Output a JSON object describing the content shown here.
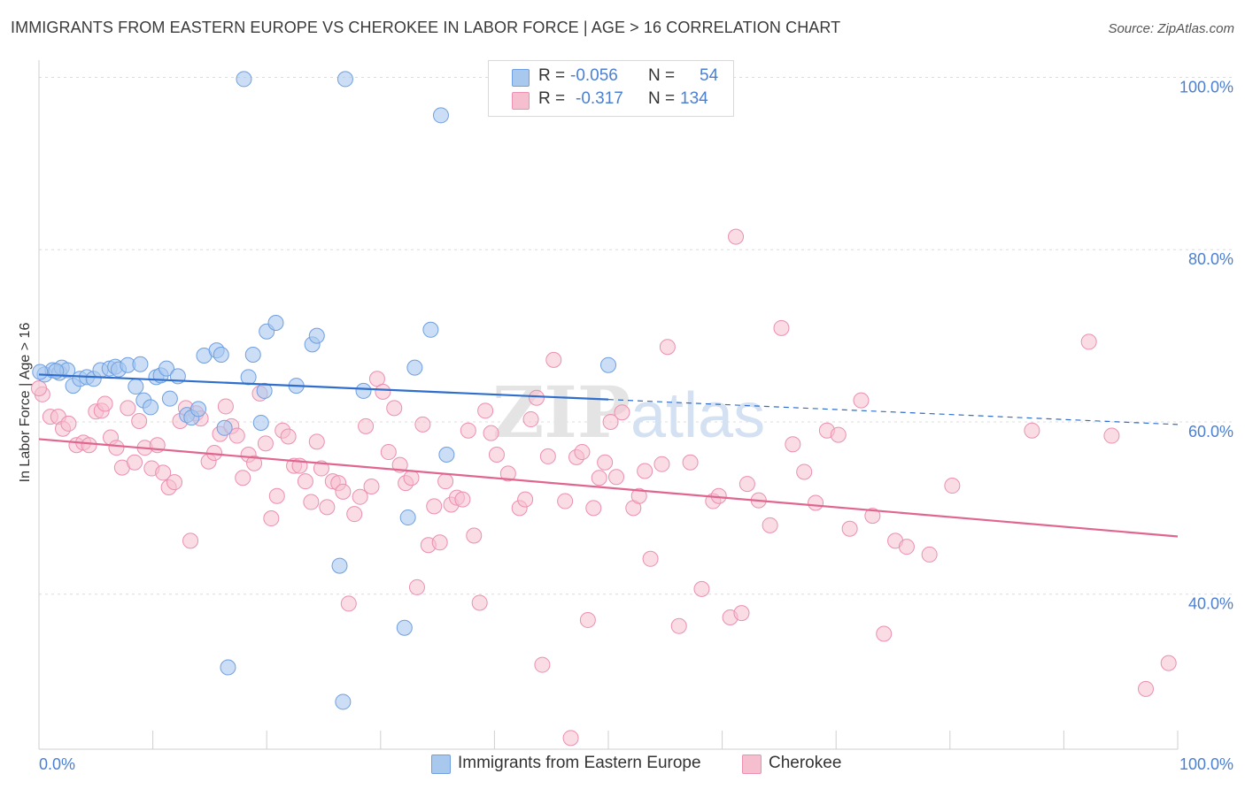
{
  "title": "IMMIGRANTS FROM EASTERN EUROPE VS CHEROKEE IN LABOR FORCE | AGE > 16 CORRELATION CHART",
  "source": "Source: ZipAtlas.com",
  "watermark": "ZIPatlas",
  "colors": {
    "blue_fill": "#a9c8ee",
    "blue_stroke": "#6f9fe0",
    "blue_line": "#2f6ecc",
    "pink_fill": "#f6bfd0",
    "pink_stroke": "#ec8fb0",
    "pink_line": "#e06690",
    "axis_text": "#4a7fd4",
    "grid": "#dcdcdc"
  },
  "legend": {
    "rows": [
      {
        "r_label": "R =",
        "r_value": "-0.056",
        "n_label": "N =",
        "n_value": "54",
        "color": "#a9c8ee"
      },
      {
        "r_label": "R =",
        "r_value": "-0.317",
        "n_label": "N =",
        "n_value": "134",
        "color": "#f6bfd0"
      }
    ]
  },
  "bottom_legend": [
    "Immigrants from Eastern Europe",
    "Cherokee"
  ],
  "chart_data": {
    "type": "scatter",
    "title": "IMMIGRANTS FROM EASTERN EUROPE VS CHEROKEE IN LABOR FORCE | AGE > 16 CORRELATION CHART",
    "xlabel": "",
    "ylabel": "In Labor Force | Age > 16",
    "xlim": [
      0,
      100
    ],
    "ylim": [
      22,
      102
    ],
    "x_tick_labels": [
      "0.0%",
      "100.0%"
    ],
    "y_tick_labels": [
      "40.0%",
      "60.0%",
      "80.0%",
      "100.0%"
    ],
    "y_ticks": [
      40,
      60,
      80,
      100
    ],
    "grid": true,
    "legend_position": "top-center",
    "series": [
      {
        "name": "Immigrants from Eastern Europe",
        "color": "#a9c8ee",
        "trend": {
          "x": [
            0,
            50
          ],
          "y": [
            65.5,
            62.6
          ],
          "dashed_extension_to": [
            100,
            59.7
          ]
        },
        "points": [
          [
            0.5,
            65.5
          ],
          [
            1.2,
            66.0
          ],
          [
            1.8,
            65.7
          ],
          [
            2.0,
            66.3
          ],
          [
            2.5,
            66.0
          ],
          [
            3.0,
            64.2
          ],
          [
            3.6,
            65.0
          ],
          [
            4.2,
            65.2
          ],
          [
            4.8,
            65.0
          ],
          [
            5.4,
            66.0
          ],
          [
            6.2,
            66.2
          ],
          [
            6.7,
            66.4
          ],
          [
            7.0,
            66.1
          ],
          [
            7.8,
            66.6
          ],
          [
            8.5,
            64.1
          ],
          [
            8.9,
            66.7
          ],
          [
            9.2,
            62.5
          ],
          [
            9.8,
            61.7
          ],
          [
            10.3,
            65.2
          ],
          [
            10.7,
            65.4
          ],
          [
            11.2,
            66.2
          ],
          [
            11.5,
            62.7
          ],
          [
            12.2,
            65.3
          ],
          [
            13.0,
            60.8
          ],
          [
            13.4,
            60.5
          ],
          [
            14.0,
            61.5
          ],
          [
            14.5,
            67.7
          ],
          [
            15.6,
            68.3
          ],
          [
            16.0,
            67.8
          ],
          [
            16.3,
            59.3
          ],
          [
            16.6,
            31.5
          ],
          [
            18.0,
            99.8
          ],
          [
            18.4,
            65.2
          ],
          [
            18.8,
            67.8
          ],
          [
            19.5,
            59.9
          ],
          [
            19.8,
            63.6
          ],
          [
            20.0,
            70.5
          ],
          [
            20.8,
            71.5
          ],
          [
            22.6,
            64.2
          ],
          [
            24.0,
            69.0
          ],
          [
            24.4,
            70.0
          ],
          [
            26.4,
            43.3
          ],
          [
            26.7,
            27.5
          ],
          [
            26.9,
            99.8
          ],
          [
            28.5,
            63.6
          ],
          [
            32.1,
            36.1
          ],
          [
            32.4,
            48.9
          ],
          [
            33.0,
            66.3
          ],
          [
            34.4,
            70.7
          ],
          [
            35.3,
            95.6
          ],
          [
            35.8,
            56.2
          ],
          [
            50.0,
            66.6
          ],
          [
            0.1,
            65.8
          ],
          [
            1.5,
            65.9
          ]
        ]
      },
      {
        "name": "Cherokee",
        "color": "#f6bfd0",
        "trend": {
          "x": [
            0,
            100
          ],
          "y": [
            58.0,
            46.7
          ]
        },
        "points": [
          [
            0.3,
            63.2
          ],
          [
            1.0,
            60.6
          ],
          [
            1.7,
            60.6
          ],
          [
            2.1,
            59.2
          ],
          [
            2.6,
            59.8
          ],
          [
            3.3,
            57.3
          ],
          [
            3.9,
            57.6
          ],
          [
            4.4,
            57.3
          ],
          [
            5.0,
            61.2
          ],
          [
            5.5,
            61.3
          ],
          [
            5.8,
            62.1
          ],
          [
            6.3,
            58.2
          ],
          [
            6.8,
            57.0
          ],
          [
            7.3,
            54.7
          ],
          [
            7.8,
            61.6
          ],
          [
            8.4,
            55.3
          ],
          [
            8.8,
            60.1
          ],
          [
            9.3,
            57.0
          ],
          [
            9.9,
            54.6
          ],
          [
            10.4,
            57.3
          ],
          [
            10.9,
            54.1
          ],
          [
            11.4,
            52.4
          ],
          [
            11.9,
            53.0
          ],
          [
            12.4,
            60.1
          ],
          [
            12.9,
            61.6
          ],
          [
            13.3,
            46.2
          ],
          [
            13.8,
            61.0
          ],
          [
            14.2,
            60.4
          ],
          [
            14.9,
            55.4
          ],
          [
            15.4,
            56.4
          ],
          [
            15.9,
            58.6
          ],
          [
            16.4,
            61.8
          ],
          [
            16.9,
            59.5
          ],
          [
            17.4,
            58.4
          ],
          [
            17.9,
            53.5
          ],
          [
            18.4,
            56.2
          ],
          [
            18.9,
            55.2
          ],
          [
            19.4,
            63.3
          ],
          [
            19.9,
            57.5
          ],
          [
            20.4,
            48.8
          ],
          [
            20.9,
            51.4
          ],
          [
            21.4,
            59.0
          ],
          [
            21.9,
            58.3
          ],
          [
            22.4,
            54.9
          ],
          [
            22.9,
            54.9
          ],
          [
            23.4,
            53.1
          ],
          [
            23.9,
            50.7
          ],
          [
            24.4,
            57.7
          ],
          [
            24.8,
            54.6
          ],
          [
            25.3,
            50.1
          ],
          [
            25.8,
            53.1
          ],
          [
            26.3,
            52.9
          ],
          [
            26.7,
            51.9
          ],
          [
            27.2,
            38.9
          ],
          [
            27.7,
            49.3
          ],
          [
            28.2,
            51.3
          ],
          [
            28.7,
            59.5
          ],
          [
            29.2,
            52.5
          ],
          [
            29.7,
            65.0
          ],
          [
            30.2,
            63.5
          ],
          [
            30.7,
            56.5
          ],
          [
            31.2,
            61.6
          ],
          [
            31.7,
            55.0
          ],
          [
            32.2,
            52.9
          ],
          [
            32.7,
            53.5
          ],
          [
            33.2,
            40.8
          ],
          [
            33.7,
            59.7
          ],
          [
            34.2,
            45.7
          ],
          [
            34.7,
            50.2
          ],
          [
            35.2,
            46.0
          ],
          [
            35.7,
            53.1
          ],
          [
            36.2,
            50.4
          ],
          [
            36.7,
            51.2
          ],
          [
            37.2,
            51.0
          ],
          [
            37.7,
            59.0
          ],
          [
            38.2,
            46.8
          ],
          [
            38.7,
            39.0
          ],
          [
            39.2,
            61.3
          ],
          [
            39.7,
            58.7
          ],
          [
            40.2,
            56.2
          ],
          [
            41.2,
            54.0
          ],
          [
            42.2,
            50.0
          ],
          [
            42.7,
            51.0
          ],
          [
            43.2,
            60.3
          ],
          [
            43.7,
            62.8
          ],
          [
            44.2,
            31.8
          ],
          [
            44.7,
            56.0
          ],
          [
            45.2,
            67.2
          ],
          [
            46.2,
            50.8
          ],
          [
            46.7,
            23.3
          ],
          [
            47.2,
            55.9
          ],
          [
            47.7,
            56.5
          ],
          [
            48.2,
            37.0
          ],
          [
            48.7,
            50.0
          ],
          [
            49.2,
            53.5
          ],
          [
            49.7,
            55.3
          ],
          [
            50.2,
            60.0
          ],
          [
            50.7,
            53.6
          ],
          [
            51.2,
            61.1
          ],
          [
            52.2,
            50.0
          ],
          [
            52.7,
            51.4
          ],
          [
            53.2,
            54.3
          ],
          [
            53.7,
            44.1
          ],
          [
            54.7,
            55.1
          ],
          [
            55.2,
            68.7
          ],
          [
            56.2,
            36.3
          ],
          [
            57.2,
            55.3
          ],
          [
            58.2,
            40.6
          ],
          [
            59.2,
            50.8
          ],
          [
            59.7,
            51.4
          ],
          [
            60.7,
            37.3
          ],
          [
            61.2,
            81.5
          ],
          [
            61.7,
            37.8
          ],
          [
            62.2,
            52.8
          ],
          [
            63.2,
            50.9
          ],
          [
            64.2,
            48.0
          ],
          [
            65.2,
            70.9
          ],
          [
            66.2,
            57.4
          ],
          [
            67.2,
            54.2
          ],
          [
            68.2,
            50.6
          ],
          [
            69.2,
            59.0
          ],
          [
            70.2,
            58.5
          ],
          [
            71.2,
            47.6
          ],
          [
            72.2,
            62.5
          ],
          [
            73.2,
            49.1
          ],
          [
            74.2,
            35.4
          ],
          [
            75.2,
            46.2
          ],
          [
            76.2,
            45.5
          ],
          [
            78.2,
            44.6
          ],
          [
            80.2,
            52.6
          ],
          [
            87.2,
            59.0
          ],
          [
            92.2,
            69.3
          ],
          [
            94.2,
            58.4
          ],
          [
            97.2,
            29.0
          ],
          [
            99.2,
            32.0
          ],
          [
            0.0,
            63.9
          ]
        ]
      }
    ]
  }
}
